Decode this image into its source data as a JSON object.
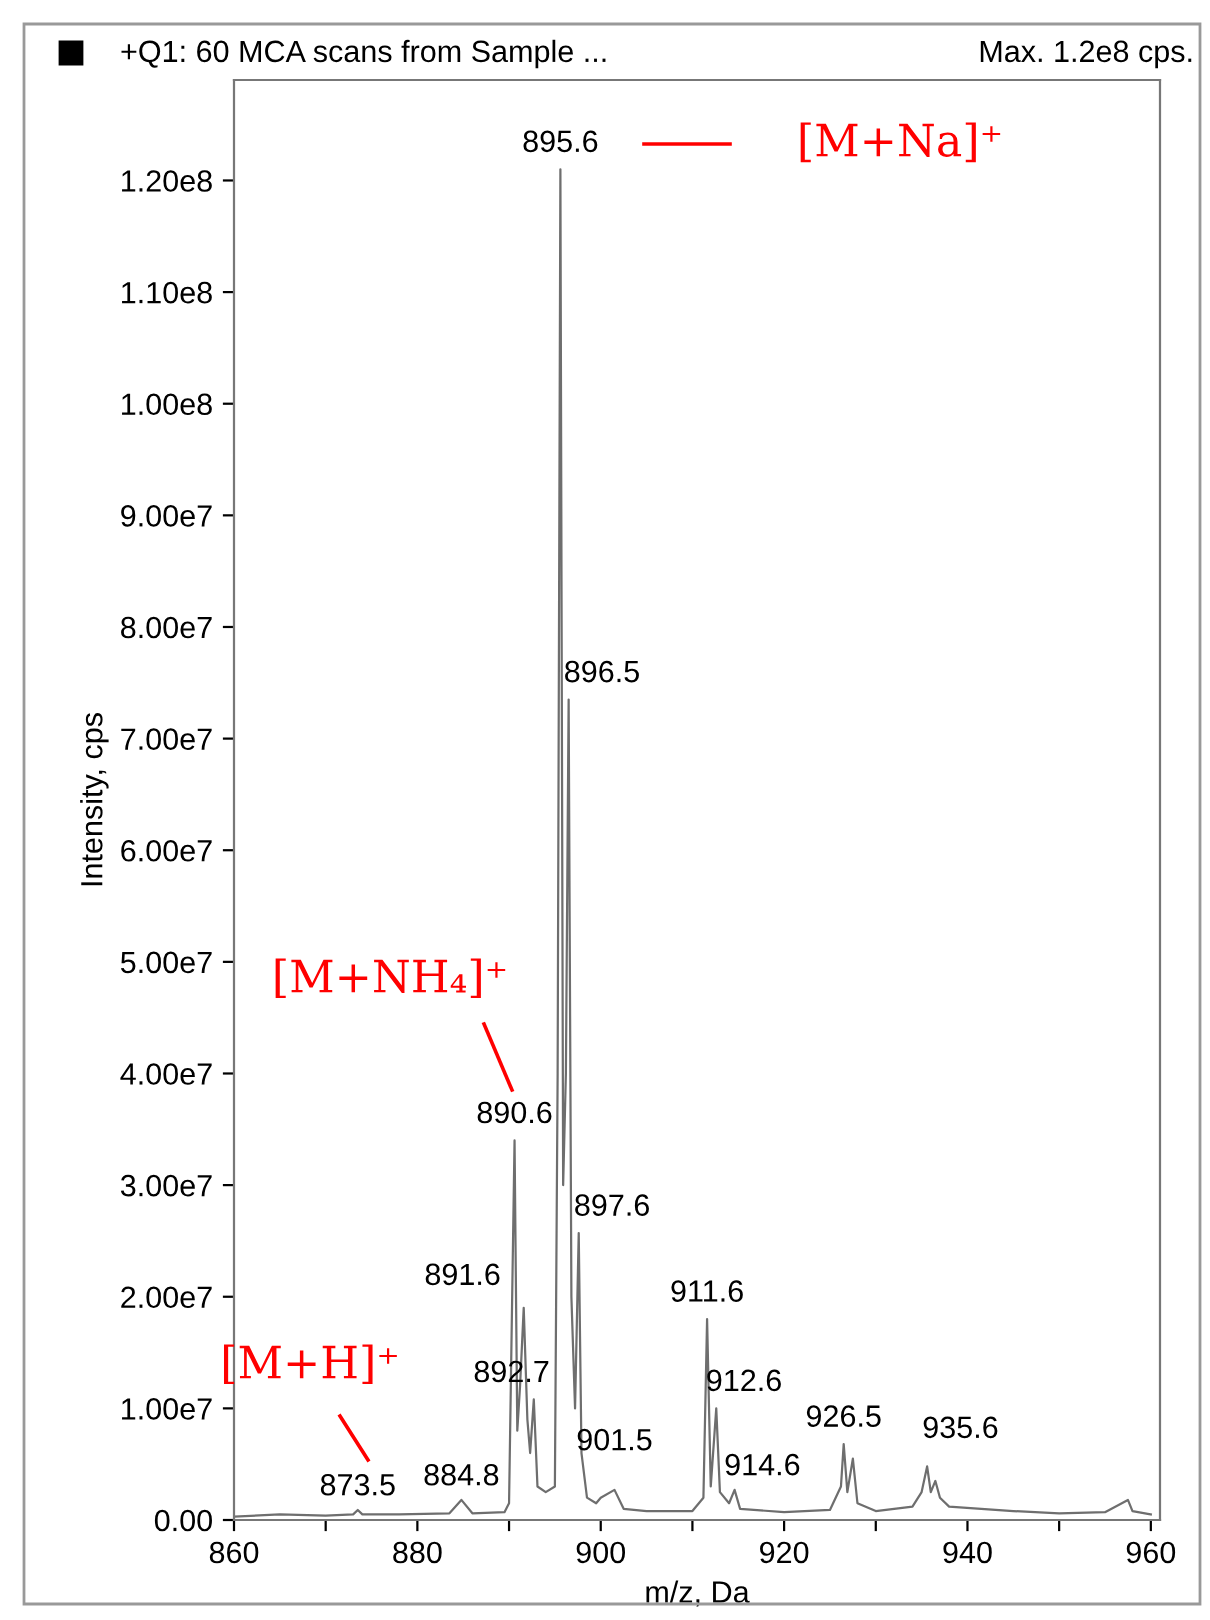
{
  "chart_data": {
    "type": "line",
    "title": "+Q1: 60 MCA scans from Sample ...",
    "subtitle": "Max. 1.2e8 cps.",
    "xlabel": "m/z, Da",
    "ylabel": "Intensity, cps",
    "x": [
      860,
      865,
      870,
      873.0,
      873.5,
      874.0,
      878,
      883.5,
      884.8,
      886,
      889.5,
      890.0,
      890.6,
      890.9,
      891.2,
      891.6,
      892.0,
      892.3,
      892.7,
      893.1,
      894.0,
      895.0,
      895.3,
      895.6,
      895.9,
      896.2,
      896.5,
      896.8,
      897.2,
      897.6,
      897.9,
      898.5,
      899.5,
      900.0,
      901.5,
      902.5,
      905,
      910,
      911.2,
      911.6,
      912.0,
      912.6,
      913.0,
      914.0,
      914.6,
      915.2,
      920,
      925,
      926.2,
      926.5,
      926.9,
      927.5,
      928.0,
      930,
      934,
      935.0,
      935.6,
      936.0,
      936.5,
      937.0,
      938,
      945,
      950,
      955,
      957.5,
      958,
      960
    ],
    "series": [
      {
        "color": "#6e6e6e",
        "values": [
          300000,
          500000,
          400000,
          500000,
          900000,
          500000,
          500000,
          600000,
          1800000,
          600000,
          700000,
          1500000,
          34000000,
          8000000,
          12000000,
          19000000,
          9000000,
          6000000,
          10800000,
          3000000,
          2500000,
          3000000,
          40000000,
          121000000,
          30000000,
          40000000,
          73500000,
          20000000,
          10000000,
          25700000,
          6000000,
          2000000,
          1500000,
          2000000,
          2700000,
          1000000,
          800000,
          800000,
          2000000,
          18000000,
          3000000,
          10000000,
          2500000,
          1500000,
          2700000,
          1000000,
          700000,
          900000,
          3000000,
          6800000,
          2500000,
          5500000,
          1500000,
          800000,
          1200000,
          2500000,
          4800000,
          2500000,
          3500000,
          2000000,
          1200000,
          800000,
          600000,
          700000,
          1800000,
          800000,
          500000
        ]
      }
    ],
    "xlim": [
      860,
      961
    ],
    "xticks": [
      860,
      {
        "value": 870,
        "label": null
      },
      880,
      {
        "value": 890,
        "label": null
      },
      900,
      {
        "value": 910,
        "label": null
      },
      920,
      {
        "value": 930,
        "label": null
      },
      940,
      {
        "value": 950,
        "label": null
      },
      960
    ],
    "ylim": [
      0,
      129000000
    ],
    "yticks": [
      {
        "value": 0,
        "label": "0.00"
      },
      {
        "value": 10000000,
        "label": "1.00e7"
      },
      {
        "value": 20000000,
        "label": "2.00e7"
      },
      {
        "value": 30000000,
        "label": "3.00e7"
      },
      {
        "value": 40000000,
        "label": "4.00e7"
      },
      {
        "value": 50000000,
        "label": "5.00e7"
      },
      {
        "value": 60000000,
        "label": "6.00e7"
      },
      {
        "value": 70000000,
        "label": "7.00e7"
      },
      {
        "value": 80000000,
        "label": "8.00e7"
      },
      {
        "value": 90000000,
        "label": "9.00e7"
      },
      {
        "value": 100000000,
        "label": "1.00e8"
      },
      {
        "value": 110000000,
        "label": "1.10e8"
      },
      {
        "value": 120000000,
        "label": "1.20e8"
      }
    ],
    "grid": false,
    "marker": "none",
    "line_style": "solid",
    "annotations": [
      {
        "text": "895.6",
        "x": 895.6,
        "y": 121000000
      },
      {
        "text": "896.5",
        "x": 896.5,
        "y": 73500000
      },
      {
        "text": "890.6",
        "x": 890.6,
        "y": 34000000
      },
      {
        "text": "897.6",
        "x": 897.6,
        "y": 25700000
      },
      {
        "text": "891.6",
        "x": 891.6,
        "y": 19000000
      },
      {
        "text": "892.7",
        "x": 892.7,
        "y": 10800000
      },
      {
        "text": "873.5",
        "x": 873.5,
        "y": 900000
      },
      {
        "text": "884.8",
        "x": 884.8,
        "y": 1800000
      },
      {
        "text": "901.5",
        "x": 901.5,
        "y": 2700000
      },
      {
        "text": "911.6",
        "x": 911.6,
        "y": 18000000
      },
      {
        "text": "912.6",
        "x": 912.6,
        "y": 10000000
      },
      {
        "text": "914.6",
        "x": 914.6,
        "y": 2700000
      },
      {
        "text": "926.5",
        "x": 926.5,
        "y": 6800000
      },
      {
        "text": "935.6",
        "x": 935.6,
        "y": 4800000
      },
      "[M+Na]⁺",
      "[M+NH₄]⁺",
      "[M+H]⁺"
    ]
  }
}
